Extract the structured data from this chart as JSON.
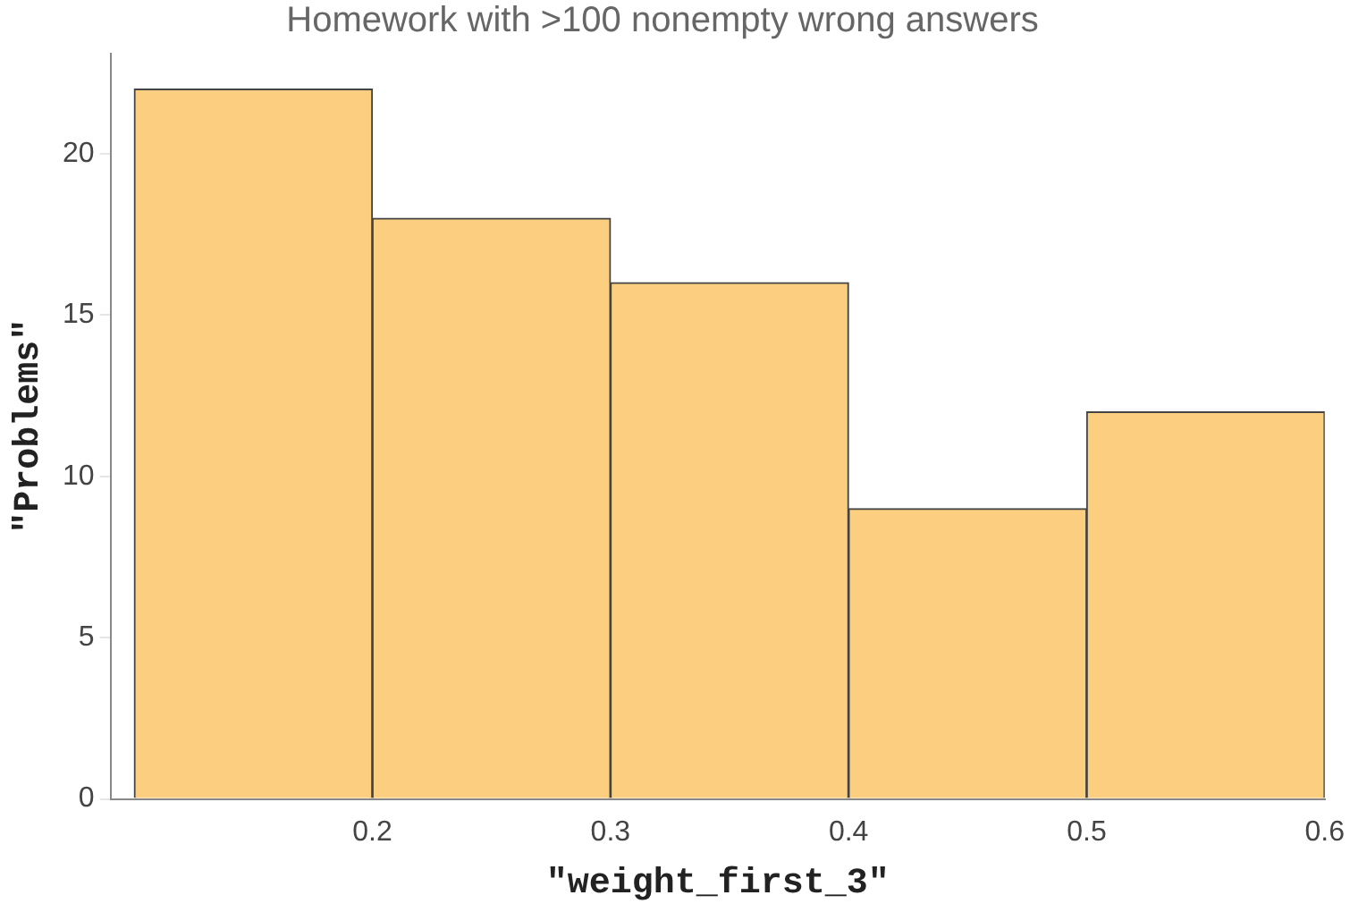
{
  "chart_data": {
    "type": "histogram",
    "title": "Homework with >100 nonempty wrong answers",
    "xlabel": "\"weight_first_3\"",
    "ylabel": "\"Problems\"",
    "bins": [
      0.1,
      0.2,
      0.3,
      0.4,
      0.5,
      0.6
    ],
    "values": [
      22,
      18,
      16,
      9,
      12
    ],
    "color": "#fbcf7f",
    "xlim": [
      0.09,
      0.6
    ],
    "xticks": [
      0.2,
      0.3,
      0.4,
      0.5,
      0.6
    ],
    "ylim": [
      0,
      23.1
    ],
    "yticks": [
      0,
      5,
      10,
      15,
      20
    ],
    "grid": false,
    "legend": false
  }
}
